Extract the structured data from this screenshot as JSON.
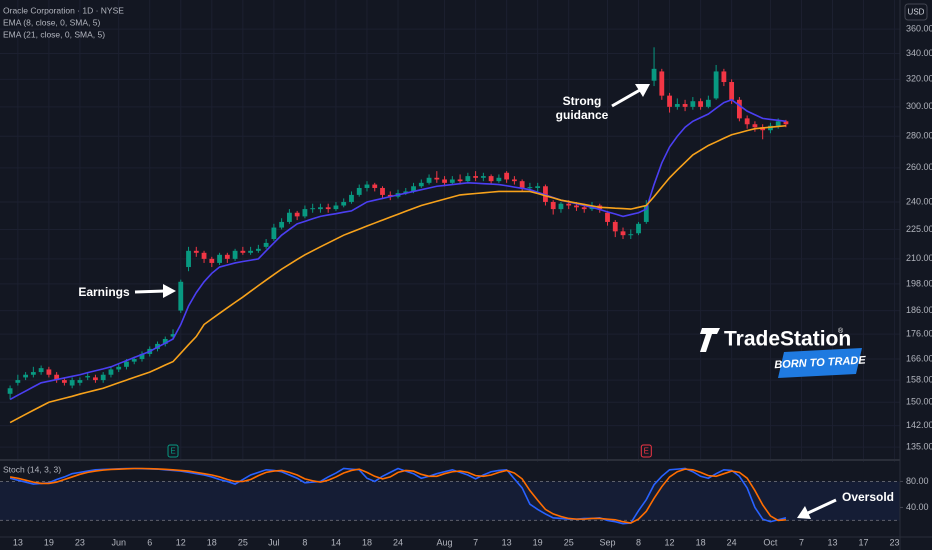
{
  "chart_data": [
    {
      "type": "candlestick",
      "title": "Oracle Corporation · 1D · NYSE",
      "currency": "USD",
      "log_scale": true,
      "grid": true,
      "up_color": "#089981",
      "down_color": "#f23645",
      "open": [
        153,
        157,
        159,
        160,
        161,
        162,
        160,
        158,
        156,
        157,
        159,
        159,
        158,
        160,
        162,
        163,
        165,
        166,
        168,
        170,
        172,
        175,
        186,
        206,
        214,
        213,
        210,
        208,
        212,
        210,
        214,
        213,
        214,
        216,
        220,
        226,
        229,
        234,
        232,
        236,
        236,
        237,
        236,
        238,
        240,
        244,
        248,
        250,
        248,
        244,
        243,
        245,
        246,
        249,
        251,
        254,
        253,
        251,
        253,
        252,
        255,
        254,
        255,
        252,
        257,
        253,
        252,
        248,
        248,
        249,
        240,
        236,
        239,
        238,
        237,
        236,
        238,
        234,
        229,
        224,
        222,
        223,
        229,
        319,
        326,
        308,
        300,
        302,
        300,
        304,
        300,
        306,
        326,
        318,
        305,
        292,
        288,
        286,
        284,
        287,
        290
      ],
      "high": [
        156,
        160,
        161,
        163,
        163.5,
        163,
        161,
        159,
        159,
        159,
        161,
        160,
        161,
        163,
        164,
        166,
        167,
        169,
        171,
        173,
        175,
        178,
        200,
        216,
        216,
        214,
        211,
        213,
        213,
        215,
        216,
        216,
        217,
        220,
        228,
        231,
        236,
        235,
        238,
        239,
        239,
        239,
        240,
        242,
        246,
        250,
        252,
        251,
        249,
        246,
        247,
        248,
        251,
        253,
        256,
        258,
        255,
        255,
        256,
        257,
        258,
        257,
        256,
        256,
        258,
        255,
        253,
        251,
        251,
        250,
        241,
        240,
        241,
        240,
        239,
        240,
        239,
        235,
        230,
        226,
        225,
        229,
        241,
        345,
        328,
        310,
        306,
        305,
        307,
        306,
        308,
        331,
        328,
        320,
        307,
        294,
        290,
        288,
        289,
        292,
        291
      ],
      "low": [
        151,
        156,
        158,
        159,
        160,
        159,
        157,
        156,
        155,
        156,
        158,
        157,
        157,
        159,
        161,
        162,
        164,
        165,
        167,
        169,
        171,
        174,
        185,
        204,
        211,
        208,
        206,
        207,
        208,
        209,
        212,
        212,
        213,
        215,
        219,
        225,
        228,
        230,
        231,
        234,
        234,
        234,
        235,
        237,
        239,
        243,
        246,
        246,
        242,
        241,
        242,
        244,
        245,
        248,
        250,
        251,
        249,
        250,
        250,
        251,
        252,
        252,
        250,
        251,
        251,
        250,
        246,
        246,
        246,
        238,
        233,
        234,
        236,
        235,
        234,
        235,
        234,
        227,
        221,
        220,
        220,
        222,
        228,
        315,
        305,
        296,
        298,
        297,
        298,
        298,
        299,
        305,
        315,
        302,
        290,
        285,
        283,
        278,
        282,
        285,
        286
      ],
      "close": [
        155,
        158,
        160,
        161,
        162.5,
        160,
        158,
        157,
        158,
        158,
        159.5,
        158,
        160,
        162,
        163,
        165,
        166,
        168,
        170,
        172,
        174,
        176,
        199,
        214,
        213,
        210,
        208,
        212,
        210,
        214,
        213,
        214,
        215,
        218,
        226,
        229,
        234,
        232,
        236,
        236.5,
        237,
        236,
        238,
        240,
        244,
        248,
        250,
        248,
        244,
        243,
        245,
        246,
        249,
        251,
        254,
        253,
        251,
        253,
        252,
        255,
        254,
        255,
        252,
        254,
        253,
        252,
        248,
        248.5,
        249,
        240,
        236,
        239,
        238,
        237,
        236,
        238,
        236,
        229,
        224,
        222,
        222.5,
        228,
        238,
        328,
        308,
        300,
        302,
        300,
        304,
        300,
        305,
        326,
        318,
        305,
        292,
        288,
        286,
        284,
        287,
        290,
        288
      ],
      "series": [
        {
          "name": "EMA (8, close, 0, SMA, 5)",
          "color": "#4b3ff2",
          "values": [
            151,
            152.5,
            154,
            155.5,
            157,
            157.6,
            158.2,
            158.8,
            159.4,
            160,
            160.8,
            161.5,
            162.2,
            163,
            164.2,
            165.4,
            166.6,
            167.8,
            169,
            170.7,
            172.3,
            174,
            180,
            188,
            194,
            199,
            203,
            206,
            207,
            208,
            208.7,
            209.3,
            210,
            214,
            218,
            222,
            225,
            228,
            229.3,
            230.7,
            232,
            232.8,
            233.5,
            234.3,
            235,
            237.5,
            240,
            241,
            242,
            243,
            244,
            245,
            246,
            247,
            248,
            249,
            249.5,
            250,
            250.5,
            251,
            250.8,
            250.5,
            250.3,
            250,
            249.3,
            248.5,
            247.8,
            247,
            245.5,
            244,
            242.5,
            241,
            240,
            239,
            238,
            237,
            235.8,
            234.5,
            233.3,
            232,
            233,
            234,
            236,
            250,
            263,
            273,
            280,
            286,
            290,
            292.5,
            295,
            299,
            303,
            305,
            301,
            297,
            294.5,
            292,
            291.3,
            290.7,
            290
          ]
        },
        {
          "name": "EMA (21, close, 0, SMA, 5)",
          "color": "#f7a21b",
          "values": [
            143,
            144.4,
            145.8,
            147.2,
            148.6,
            150,
            150.7,
            151.4,
            152.1,
            152.9,
            153.6,
            154.3,
            155,
            156,
            157,
            158,
            159,
            160,
            161,
            162.3,
            163.7,
            165,
            168.3,
            171.7,
            175,
            180,
            182.4,
            184.8,
            187.2,
            189.6,
            192,
            194.6,
            197.2,
            199.8,
            202.4,
            205,
            207.3,
            209.7,
            212,
            214,
            216,
            218,
            220,
            222,
            223.6,
            225.2,
            226.8,
            228.4,
            230,
            231.6,
            233.2,
            234.8,
            236.4,
            238,
            239.2,
            240.4,
            241.6,
            242.8,
            244,
            244.4,
            244.8,
            245.2,
            245.6,
            246,
            246,
            246,
            246,
            246,
            244.8,
            243.5,
            242.3,
            241,
            240.2,
            239.4,
            238.6,
            237.8,
            237,
            236.8,
            236.5,
            236.3,
            236,
            237,
            238,
            243,
            248.5,
            254,
            258.7,
            263.3,
            268,
            271,
            274,
            276.3,
            278.7,
            281,
            282.3,
            283.7,
            285,
            285.5,
            286,
            286.5,
            287
          ]
        }
      ],
      "xlim": [
        -1.3,
        114.7
      ],
      "xticks": [
        {
          "value": 1,
          "label": "13"
        },
        {
          "value": 5,
          "label": "19"
        },
        {
          "value": 9,
          "label": "23"
        },
        {
          "value": 14,
          "label": "Jun"
        },
        {
          "value": 18,
          "label": "6"
        },
        {
          "value": 22,
          "label": "12"
        },
        {
          "value": 26,
          "label": "18"
        },
        {
          "value": 30,
          "label": "25"
        },
        {
          "value": 34,
          "label": "Jul"
        },
        {
          "value": 38,
          "label": "8"
        },
        {
          "value": 42,
          "label": "14"
        },
        {
          "value": 46,
          "label": "18"
        },
        {
          "value": 50,
          "label": "24"
        },
        {
          "value": 56,
          "label": "Aug"
        },
        {
          "value": 60,
          "label": "7"
        },
        {
          "value": 64,
          "label": "13"
        },
        {
          "value": 68,
          "label": "19"
        },
        {
          "value": 72,
          "label": "25"
        },
        {
          "value": 77,
          "label": "Sep"
        },
        {
          "value": 81,
          "label": "8"
        },
        {
          "value": 85,
          "label": "12"
        },
        {
          "value": 89,
          "label": "18"
        },
        {
          "value": 93,
          "label": "24"
        },
        {
          "value": 98,
          "label": "Oct"
        },
        {
          "value": 102,
          "label": "7"
        },
        {
          "value": 106,
          "label": "13"
        },
        {
          "value": 110,
          "label": "17"
        },
        {
          "value": 114,
          "label": "23"
        }
      ],
      "ylim": [
        131.6,
        385.5
      ],
      "yticks": [
        {
          "value": 135,
          "label": "135.00"
        },
        {
          "value": 142,
          "label": "142.00"
        },
        {
          "value": 150,
          "label": "150.00"
        },
        {
          "value": 158,
          "label": "158.00"
        },
        {
          "value": 166,
          "label": "166.00"
        },
        {
          "value": 176,
          "label": "176.00"
        },
        {
          "value": 186,
          "label": "186.00"
        },
        {
          "value": 198,
          "label": "198.00"
        },
        {
          "value": 210,
          "label": "210.00"
        },
        {
          "value": 225,
          "label": "225.00"
        },
        {
          "value": 240,
          "label": "240.00"
        },
        {
          "value": 260,
          "label": "260.00"
        },
        {
          "value": 280,
          "label": "280.00"
        },
        {
          "value": 300,
          "label": "300.00"
        },
        {
          "value": 320,
          "label": "320.00"
        },
        {
          "value": 340,
          "label": "340.00"
        },
        {
          "value": 360,
          "label": "360.00"
        }
      ],
      "events": [
        {
          "x": 21,
          "label": "E",
          "color": "#089981"
        },
        {
          "x": 82,
          "label": "E",
          "color": "#f23645"
        }
      ],
      "annotations": [
        "Earnings",
        "Strong guidance",
        "Oversold"
      ]
    },
    {
      "type": "line",
      "title": "Stoch (14, 3, 3)",
      "series": [
        {
          "color": "#2962ff",
          "values": [
            85,
            82,
            79,
            76,
            77,
            78,
            83,
            87,
            92,
            94,
            96,
            98,
            98.5,
            99,
            99.5,
            100,
            100,
            99.7,
            99.3,
            99,
            98,
            97,
            96,
            94,
            92,
            90,
            87,
            83,
            80,
            76,
            83,
            90,
            94,
            98,
            97,
            95,
            90,
            85,
            78,
            79,
            80,
            87,
            93,
            100,
            99,
            98,
            85,
            80,
            88,
            94,
            100,
            96,
            92,
            85,
            88,
            92,
            95,
            98,
            94,
            90,
            84,
            90,
            95,
            97,
            98,
            84,
            70,
            45,
            37,
            30,
            24,
            23,
            22,
            22,
            23,
            23,
            24,
            20,
            18,
            15,
            16,
            35,
            52,
            75,
            88,
            98,
            99,
            100,
            95,
            88,
            85,
            92,
            98,
            97,
            88,
            70,
            40,
            22,
            18,
            21,
            24
          ]
        },
        {
          "color": "#ff6d00",
          "values": [
            87,
            85,
            82,
            79,
            77,
            77,
            79,
            83,
            87,
            91,
            94,
            96,
            97.5,
            98.5,
            99,
            99.5,
            100,
            100,
            99.7,
            99.3,
            98.8,
            98,
            97,
            96,
            94,
            92,
            90,
            87,
            83,
            80,
            80,
            83,
            89,
            94,
            96,
            97,
            94,
            90,
            84,
            81,
            79,
            82,
            87,
            93,
            97,
            99,
            94,
            88,
            84,
            87,
            94,
            97,
            96,
            91,
            88,
            88,
            92,
            95,
            96,
            94,
            89,
            88,
            90,
            94,
            97,
            93,
            84,
            66,
            51,
            37,
            30,
            26,
            23,
            22,
            22,
            23,
            23,
            22,
            21,
            18,
            16,
            22,
            34,
            54,
            72,
            87,
            95,
            99,
            98,
            94,
            89,
            88,
            92,
            96,
            94,
            85,
            66,
            44,
            27,
            20,
            21
          ]
        }
      ],
      "ylim": [
        -4,
        110
      ],
      "yticks": [
        {
          "value": 80,
          "label": "80.00"
        },
        {
          "value": 40,
          "label": "40.00"
        }
      ],
      "levels": [
        20,
        80
      ]
    }
  ],
  "logo": {
    "name": "TradeStation",
    "mark": "®",
    "tagline": "BORN TO TRADE"
  }
}
